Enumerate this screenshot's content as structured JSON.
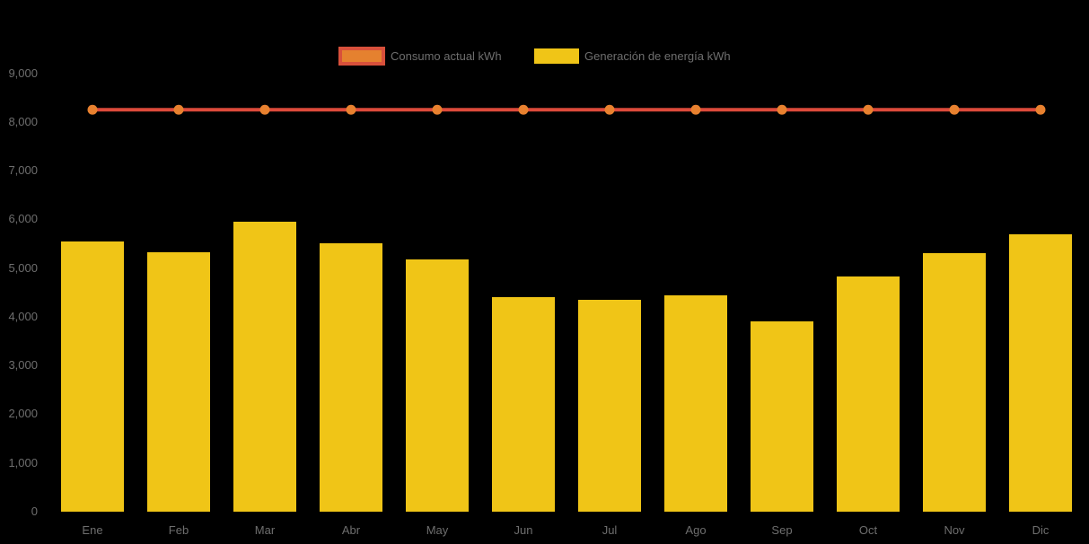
{
  "background_color": "#000000",
  "axis_text_color": "#6E6E6E",
  "legend": {
    "items": [
      {
        "label": "Consumo actual kWh",
        "series_type": "line",
        "swatch_fill": "#E5812F",
        "swatch_border": "#D8503B"
      },
      {
        "label": "Generación de energía kWh",
        "series_type": "bar",
        "swatch_fill": "#F0C517",
        "swatch_border": ""
      }
    ]
  },
  "chart_data": {
    "type": "bar",
    "title": "",
    "xlabel": "",
    "ylabel": "",
    "categories": [
      "Ene",
      "Feb",
      "Mar",
      "Abr",
      "May",
      "Jun",
      "Jul",
      "Ago",
      "Sep",
      "Oct",
      "Nov",
      "Dic"
    ],
    "series": [
      {
        "name": "Consumo actual kWh",
        "type": "line",
        "color": "#DC4A3B",
        "marker_color": "#E8812F",
        "values": [
          8250,
          8250,
          8250,
          8250,
          8250,
          8250,
          8250,
          8250,
          8250,
          8250,
          8250,
          8250
        ]
      },
      {
        "name": "Generación de energía kWh",
        "type": "bar",
        "color": "#F0C517",
        "values": [
          5550,
          5330,
          5950,
          5500,
          5170,
          4400,
          4350,
          4440,
          3900,
          4825,
          5300,
          5700
        ]
      }
    ],
    "ylim": [
      0,
      9000
    ],
    "ytick_step": 1000,
    "ytick_labels": [
      "0",
      "1,000",
      "2,000",
      "3,000",
      "4,000",
      "5,000",
      "6,000",
      "7,000",
      "8,000",
      "9,000"
    ],
    "grid": false,
    "legend_position": "top"
  }
}
